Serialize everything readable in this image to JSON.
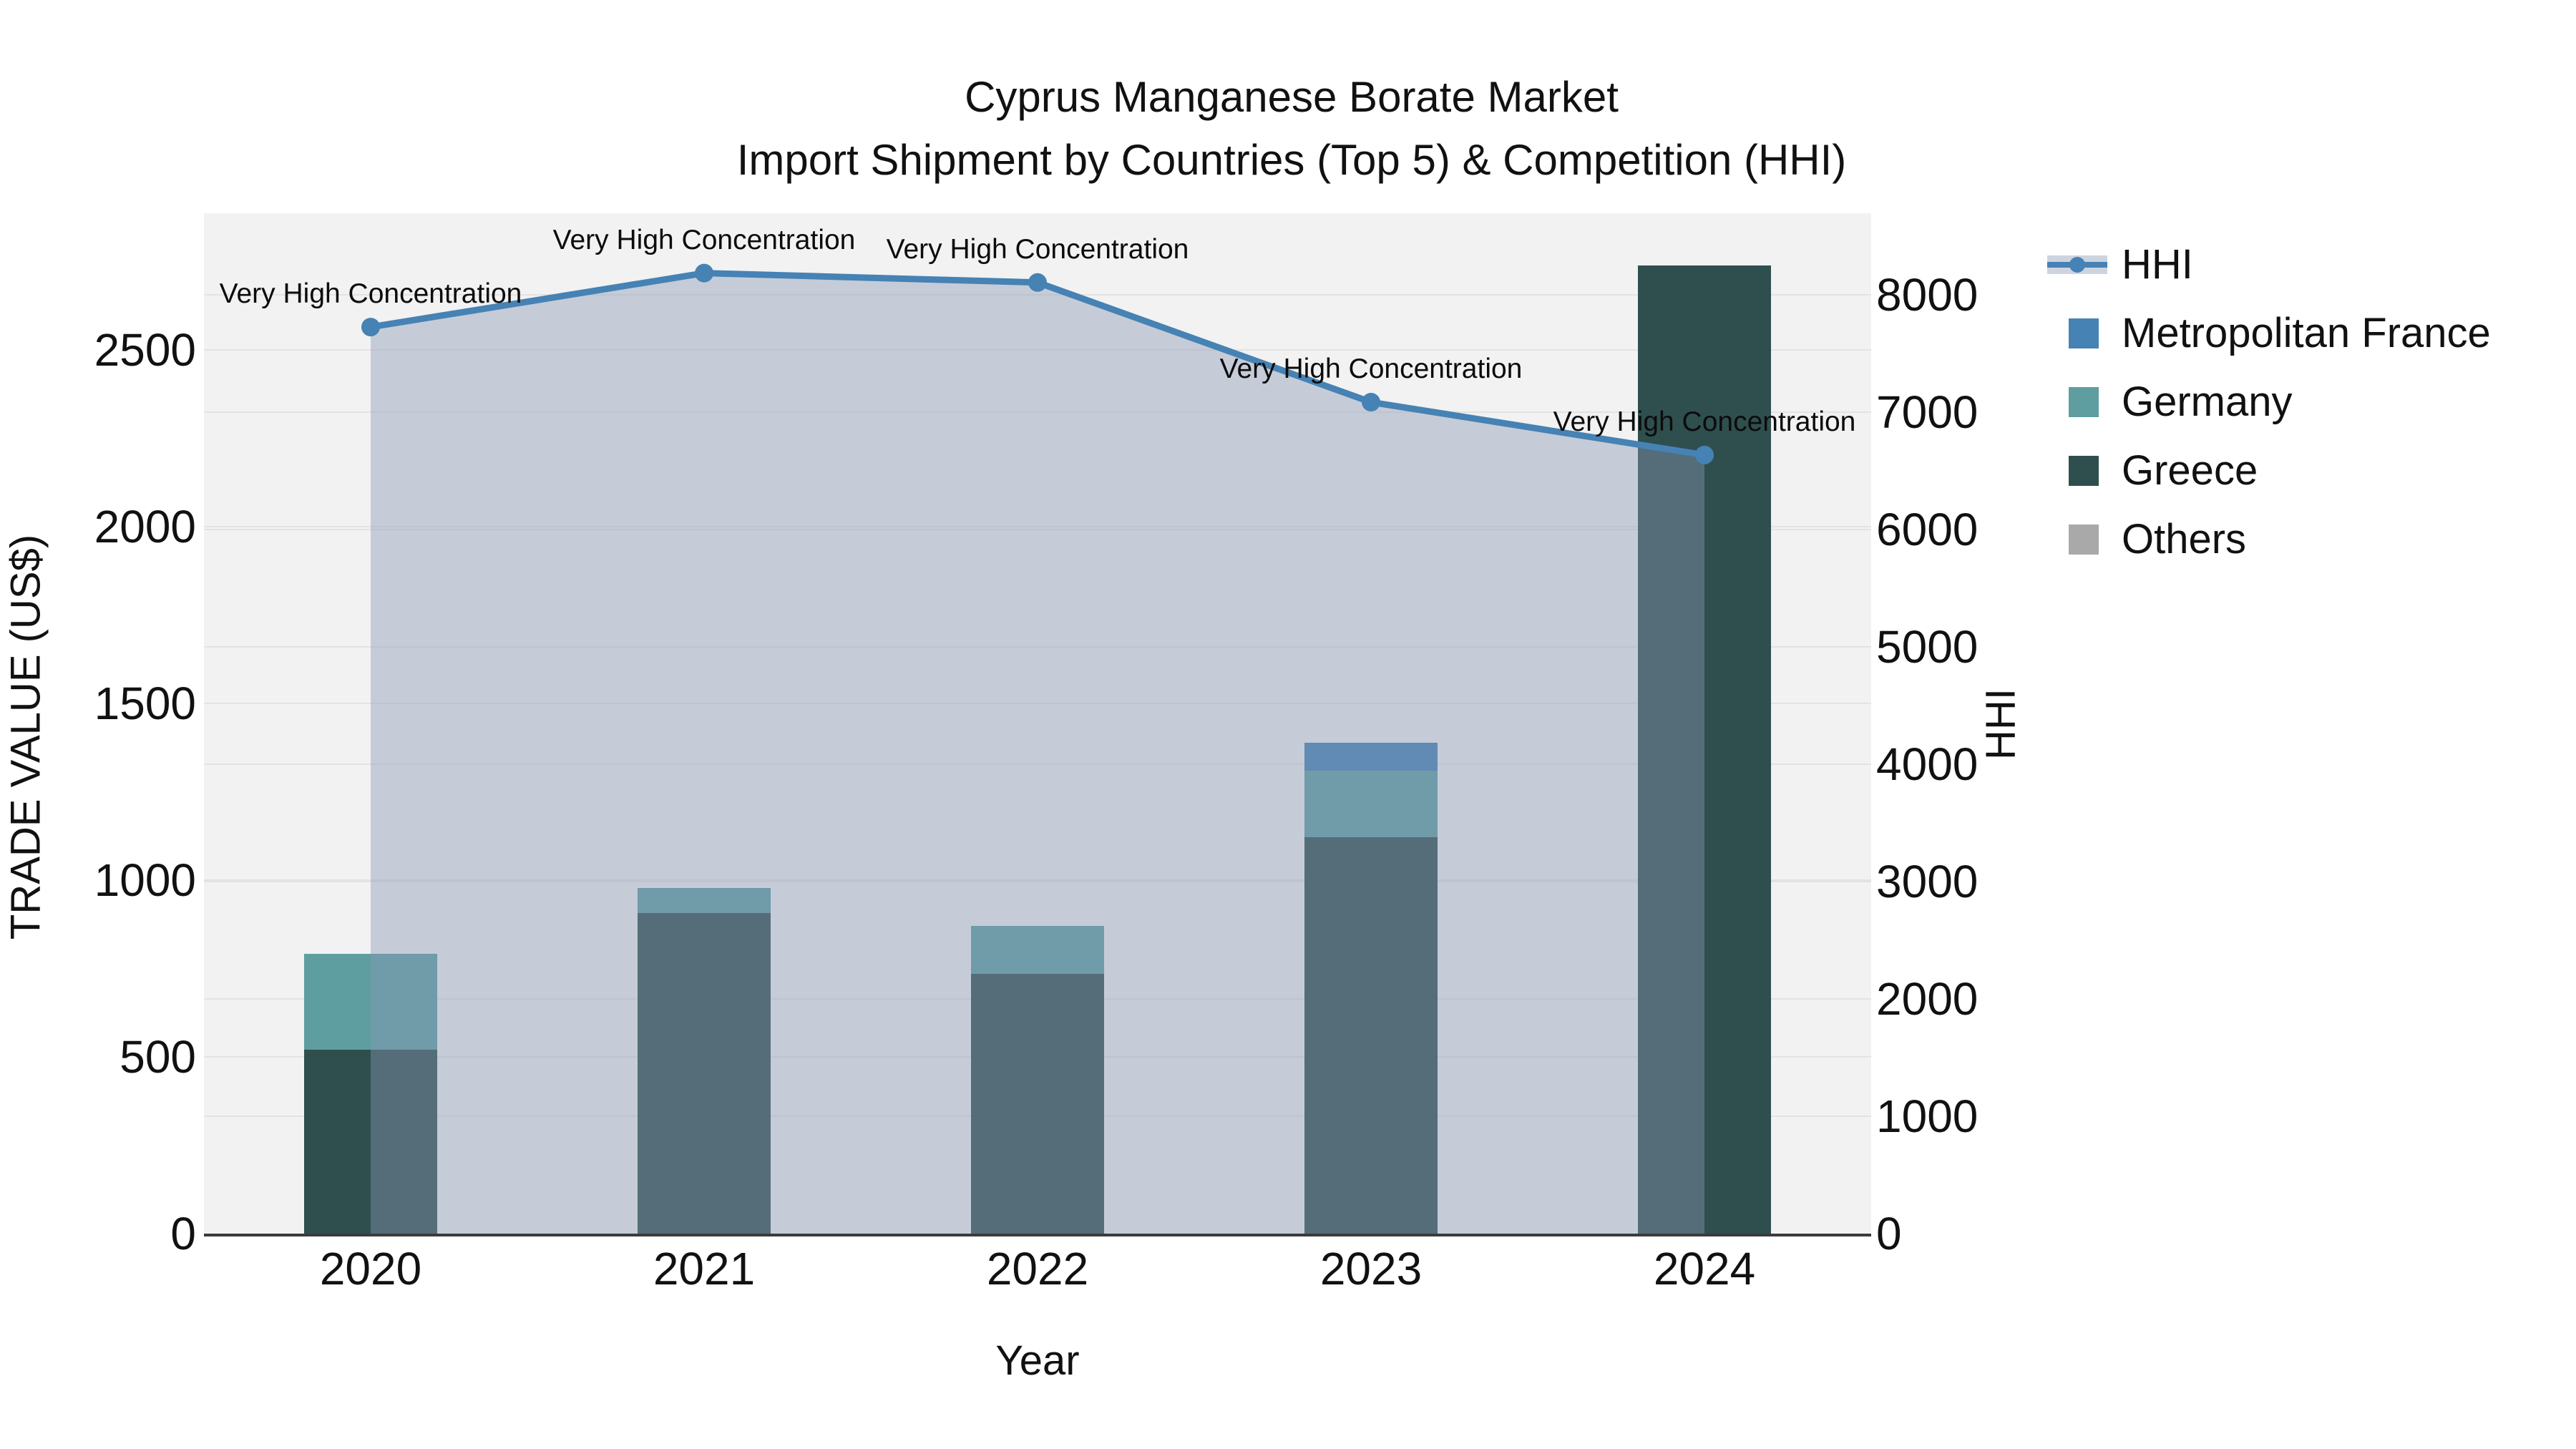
{
  "title": {
    "line1": "Cyprus Manganese Borate Market",
    "line2": "Import Shipment by Countries (Top 5) & Competition (HHI)"
  },
  "axes": {
    "x": {
      "title": "Year",
      "categories": [
        "2020",
        "2021",
        "2022",
        "2023",
        "2024"
      ]
    },
    "left": {
      "title": "TRADE VALUE (US$)",
      "tick_labels": [
        "0",
        "500",
        "1000",
        "1500",
        "2000",
        "2500"
      ],
      "tick_values": [
        0,
        500,
        1000,
        1500,
        2000,
        2500
      ],
      "max": 2886
    },
    "right": {
      "title": "HHI",
      "tick_labels": [
        "0",
        "1000",
        "2000",
        "3000",
        "4000",
        "5000",
        "6000",
        "7000",
        "8000"
      ],
      "tick_values": [
        0,
        1000,
        2000,
        3000,
        4000,
        5000,
        6000,
        7000,
        8000
      ],
      "max": 8695
    }
  },
  "legend": {
    "items": [
      {
        "label": "HHI",
        "type": "line",
        "color": "#4682b4"
      },
      {
        "label": "Metropolitan France",
        "type": "square",
        "color": "#4682b4"
      },
      {
        "label": "Germany",
        "type": "square",
        "color": "#5f9ea0"
      },
      {
        "label": "Greece",
        "type": "square",
        "color": "#2f4f4f"
      },
      {
        "label": "Others",
        "type": "square",
        "color": "#a9a9a9"
      }
    ]
  },
  "chart_data": {
    "type": "bar+line",
    "title": "Cyprus Manganese Borate Market Import Shipment by Countries (Top 5) & Competition (HHI)",
    "xlabel": "Year",
    "ylabel_left": "TRADE VALUE (US$)",
    "ylabel_right": "HHI",
    "categories": [
      "2020",
      "2021",
      "2022",
      "2023",
      "2024"
    ],
    "bar_stack_order_bottom_to_top": [
      "Greece",
      "Germany",
      "Metropolitan France",
      "Others"
    ],
    "bar_series": [
      {
        "name": "Greece",
        "color": "#2f4f4f",
        "values": [
          520,
          907,
          735,
          1121,
          2739
        ]
      },
      {
        "name": "Germany",
        "color": "#5f9ea0",
        "values": [
          272,
          71,
          135,
          188,
          0
        ]
      },
      {
        "name": "Metropolitan France",
        "color": "#4682b4",
        "values": [
          0,
          0,
          0,
          79,
          0
        ]
      },
      {
        "name": "Others",
        "color": "#a9a9a9",
        "values": [
          0,
          0,
          0,
          0,
          0
        ]
      }
    ],
    "line_series": {
      "name": "HHI",
      "color": "#4682b4",
      "fill_color": "rgba(137,152,180,0.42)",
      "values": [
        7725,
        8185,
        8105,
        7085,
        6635
      ]
    },
    "annotations": [
      "Very High Concentration",
      "Very High Concentration",
      "Very High Concentration",
      "Very High Concentration",
      "Very High Concentration"
    ],
    "ylim_left": [
      0,
      2886
    ],
    "ylim_right": [
      0,
      8695
    ],
    "grid": true,
    "legend_position": "outside-top-right",
    "plot_bg": "#f2f2f2"
  },
  "colors": {
    "figure_bg": "#ffffff",
    "plot_bg": "#f2f2f2",
    "gridline": "#e3e3e3",
    "axis_line": "#3b3b3b",
    "hhi_line": "#4682b4",
    "hhi_fill": "rgba(137,152,180,0.42)",
    "legend_band": "#cdd4df"
  }
}
